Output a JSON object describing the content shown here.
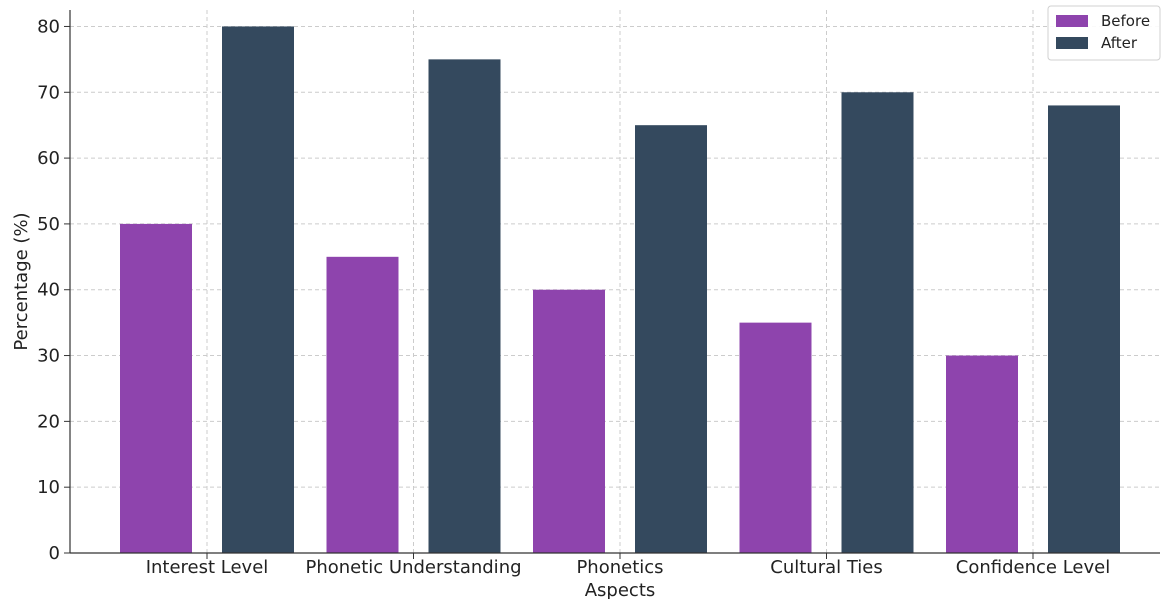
{
  "chart_data": {
    "type": "bar",
    "title": "",
    "xlabel": "Aspects",
    "ylabel": "Percentage (%)",
    "categories": [
      "Interest Level",
      "Phonetic Understanding",
      "Phonetics",
      "Cultural Ties",
      "Confidence Level"
    ],
    "series": [
      {
        "name": "Before",
        "color": "#8e44ad",
        "values": [
          50,
          45,
          40,
          35,
          30
        ]
      },
      {
        "name": "After",
        "color": "#34495e",
        "values": [
          80,
          75,
          65,
          70,
          68
        ]
      }
    ],
    "ylim": [
      0,
      82.5
    ],
    "yticks": [
      0,
      10,
      20,
      30,
      40,
      50,
      60,
      70,
      80
    ],
    "grid": true,
    "legend_position": "top-right"
  }
}
